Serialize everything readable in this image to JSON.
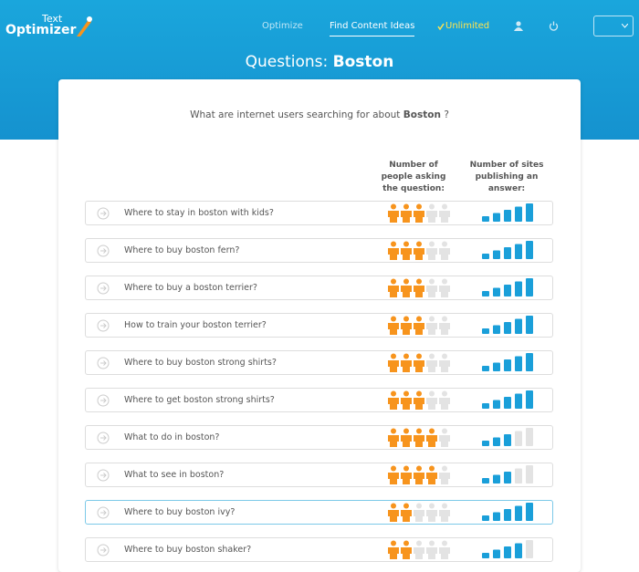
{
  "header": {
    "logo": {
      "top": "Text",
      "main": "Optimizer"
    },
    "nav": [
      "Optimize",
      "Find Content Ideas",
      "Unlimited"
    ]
  },
  "page": {
    "title_prefix": "Questions:",
    "title_keyword": "Boston",
    "subtitle_prefix": "What are internet users searching for about",
    "subtitle_keyword": "Boston",
    "subtitle_suffix": "?"
  },
  "table": {
    "columns": [
      "Number of people asking the question:",
      "Number of sites publishing an answer:"
    ],
    "scale_max": 5,
    "rows": [
      {
        "question": "Where to stay in boston with kids?",
        "people": 3,
        "sites": 5
      },
      {
        "question": "Where to buy boston fern?",
        "people": 3,
        "sites": 5
      },
      {
        "question": "Where to buy a boston terrier?",
        "people": 3,
        "sites": 5
      },
      {
        "question": "How to train your boston terrier?",
        "people": 3,
        "sites": 5
      },
      {
        "question": "Where to buy boston strong shirts?",
        "people": 3,
        "sites": 5
      },
      {
        "question": "Where to get boston strong shirts?",
        "people": 3,
        "sites": 5
      },
      {
        "question": "What to do in boston?",
        "people": 4,
        "sites": 3
      },
      {
        "question": "What to see in boston?",
        "people": 4,
        "sites": 3
      },
      {
        "question": "Where to buy boston ivy?",
        "people": 2,
        "sites": 5
      },
      {
        "question": "Where to buy boston shaker?",
        "people": 2,
        "sites": 4
      }
    ]
  }
}
